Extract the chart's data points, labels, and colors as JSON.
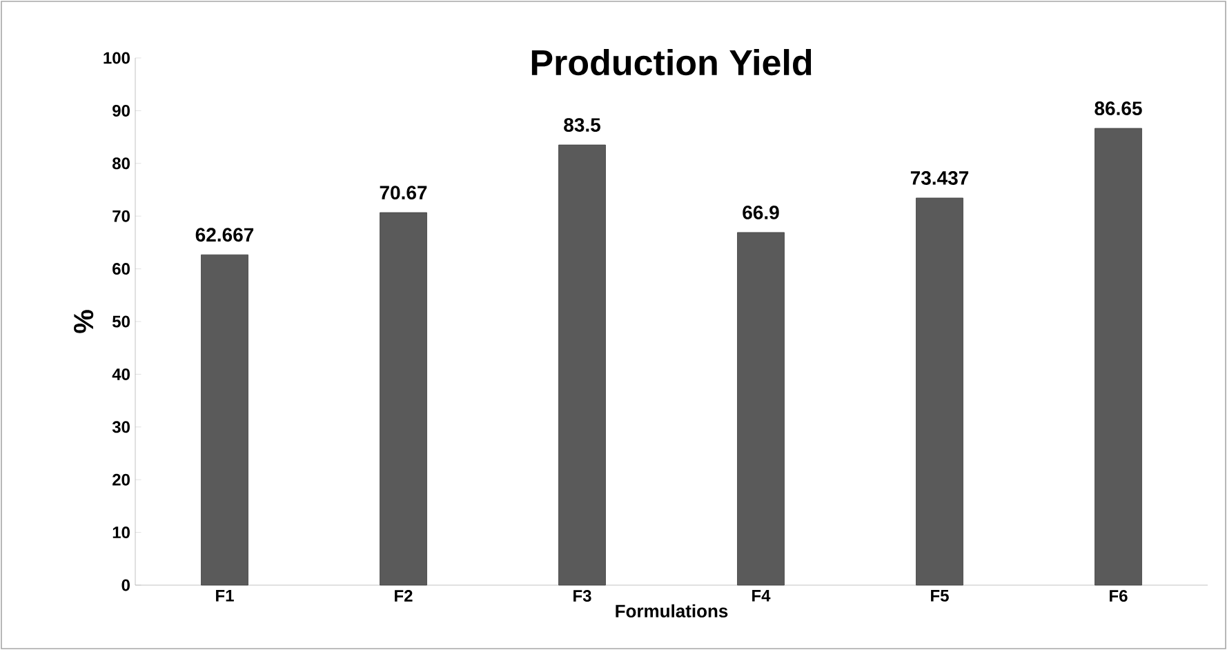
{
  "chart_data": {
    "type": "bar",
    "title": "Production Yield",
    "xlabel": "Formulations",
    "ylabel": "%",
    "categories": [
      "F1",
      "F2",
      "F3",
      "F4",
      "F5",
      "F6"
    ],
    "values": [
      62.667,
      70.67,
      83.5,
      66.9,
      73.437,
      86.65
    ],
    "color": "#5a5a5a",
    "ylim": [
      0,
      100
    ],
    "yticks": [
      0,
      10,
      20,
      30,
      40,
      50,
      60,
      70,
      80,
      90,
      100
    ],
    "data_labels": true,
    "grid": false
  }
}
